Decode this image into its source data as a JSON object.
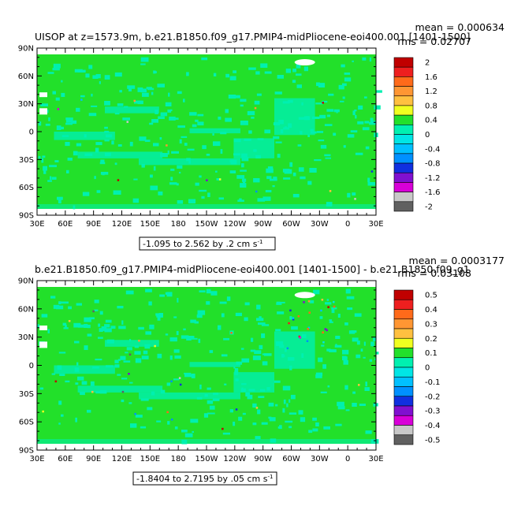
{
  "chart_data": [
    {
      "type": "heatmap",
      "title": "UISOP  at z=1573.9m, b.e21.B1850.f09_g17.PMIP4-midPliocene-eoi400.001  [1401-1500]",
      "stats": {
        "mean": "mean = 0.000634",
        "rms": "rms = 0.02707"
      },
      "range_label": "-1.095 to 2.562 by .2 cm s",
      "range_unit_exp": "-1",
      "x_ticks": [
        "30E",
        "60E",
        "90E",
        "120E",
        "150E",
        "180",
        "150W",
        "120W",
        "90W",
        "60W",
        "30W",
        "0",
        "30E"
      ],
      "y_ticks": [
        "90N",
        "60N",
        "30N",
        "0",
        "30S",
        "60S",
        "90S"
      ],
      "colorbar": {
        "labels": [
          "2",
          "1.6",
          "1.2",
          "0.8",
          "0.4",
          "0",
          "-0.4",
          "-0.8",
          "-1.2",
          "-1.6",
          "-2"
        ],
        "colors": [
          "#c00000",
          "#ee1f1f",
          "#ff6a1a",
          "#ff9633",
          "#ffc040",
          "#f0ff20",
          "#22e02a",
          "#00f0b0",
          "#00e5e5",
          "#00c0ff",
          "#0090ff",
          "#1030e0",
          "#8010d0",
          "#d800d8",
          "#c8c8c8",
          "#606060"
        ]
      },
      "field_colors": {
        "land": "#ffffff",
        "dominant": "#22e02a",
        "secondary": "#00f0b0"
      }
    },
    {
      "type": "heatmap",
      "title": "b.e21.B1850.f09_g17.PMIP4-midPliocene-eoi400.001  [1401-1500] - b.e21.B1850.f09_g1",
      "stats": {
        "mean": "mean = 0.0003177",
        "rms": "rms = 0.03108"
      },
      "range_label": "-1.8404 to 2.7195 by .05 cm s",
      "range_unit_exp": "-1",
      "x_ticks": [
        "30E",
        "60E",
        "90E",
        "120E",
        "150E",
        "180",
        "150W",
        "120W",
        "90W",
        "60W",
        "30W",
        "0",
        "30E"
      ],
      "y_ticks": [
        "90N",
        "60N",
        "30N",
        "0",
        "30S",
        "60S",
        "90S"
      ],
      "colorbar": {
        "labels": [
          "0.5",
          "0.4",
          "0.3",
          "0.2",
          "0.1",
          "0",
          "-0.1",
          "-0.2",
          "-0.3",
          "-0.4",
          "-0.5"
        ],
        "colors": [
          "#c00000",
          "#ee1f1f",
          "#ff6a1a",
          "#ff9633",
          "#ffc040",
          "#f0ff20",
          "#22e02a",
          "#00f0b0",
          "#00e5e5",
          "#00c0ff",
          "#0090ff",
          "#1030e0",
          "#8010d0",
          "#d800d8",
          "#c8c8c8",
          "#606060"
        ]
      },
      "field_colors": {
        "land": "#ffffff",
        "dominant": "#22e02a",
        "secondary": "#00f0b0"
      }
    }
  ]
}
